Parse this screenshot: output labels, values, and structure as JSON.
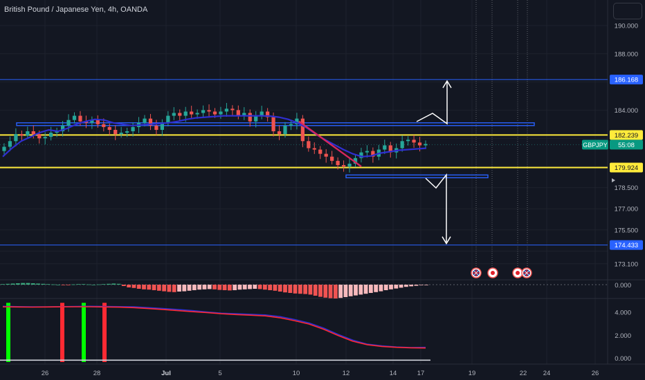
{
  "header": {
    "title": "British Pound / Japanese Yen, 4h, OANDA"
  },
  "colors": {
    "background": "#131722",
    "grid": "#1e222d",
    "up_candle": "#26a69a",
    "down_candle": "#ef5350",
    "sma_line": "#2f2fd0",
    "trend_line": "#d6275e",
    "yellow_level": "#ffeb3b",
    "blue_level": "#2962ff",
    "hist_neg_dark": "#f05352",
    "hist_neg_light": "#f7b9bc",
    "hist_pos": "#3aa77c",
    "green_bar": "#00ff00",
    "red_bar": "#ff2a33",
    "arrow": "#ffffff"
  },
  "price_axis": {
    "ticks": [
      "190.000",
      "188.000",
      "186.168",
      "184.000",
      "182.239",
      "179.924",
      "178.500",
      "177.000",
      "175.500",
      "174.433",
      "173.100"
    ],
    "symbol_badge": {
      "symbol": "GBPJPY",
      "countdown": "55:08"
    },
    "levels": [
      {
        "label": "186.168",
        "type": "blue"
      },
      {
        "label": "182.239",
        "type": "yellow"
      },
      {
        "label": "179.924",
        "type": "yellow"
      },
      {
        "label": "174.433",
        "type": "blue"
      }
    ]
  },
  "time_axis": {
    "labels": [
      "26",
      "28",
      "Jul",
      "5",
      "10",
      "12",
      "14",
      "17",
      "19",
      "22",
      "24",
      "26"
    ]
  },
  "osc1_axis": {
    "ticks": [
      "0.000"
    ]
  },
  "osc2_axis": {
    "ticks": [
      "4.000",
      "2.000",
      "0.000"
    ]
  },
  "events": [
    {
      "icon": "uk-flag-icon"
    },
    {
      "icon": "japan-flag-icon"
    },
    {
      "icon": "japan-flag-icon"
    },
    {
      "icon": "uk-flag-icon"
    }
  ],
  "chart_data": {
    "type": "candlestick",
    "title": "British Pound / Japanese Yen, 4h, OANDA",
    "symbol": "GBPJPY",
    "timeframe": "4h",
    "ylim": [
      172.6,
      191.3
    ],
    "x_tick_labels": [
      "26",
      "28",
      "Jul",
      "5",
      "10",
      "12",
      "14",
      "17",
      "19",
      "22",
      "24",
      "26"
    ],
    "key_levels": {
      "resistance_1": 186.168,
      "resistance_2": 182.239,
      "support_1": 179.924,
      "support_2": 174.433
    },
    "close_path": [
      181.4,
      181.8,
      182.3,
      182.2,
      182.5,
      182.3,
      182.0,
      182.1,
      182.4,
      182.5,
      182.9,
      183.3,
      183.6,
      183.2,
      183.1,
      183.3,
      183.0,
      182.8,
      182.6,
      182.3,
      182.4,
      182.5,
      182.8,
      183.1,
      183.4,
      182.9,
      182.6,
      183.1,
      183.6,
      183.8,
      183.6,
      183.9,
      183.7,
      183.8,
      184.0,
      183.9,
      183.7,
      183.9,
      184.1,
      184.0,
      183.6,
      183.8,
      183.2,
      183.6,
      183.9,
      183.5,
      182.5,
      182.3,
      182.9,
      183.0,
      183.4,
      181.8,
      181.3,
      181.2,
      180.9,
      180.7,
      180.4,
      180.1,
      180.0,
      180.2,
      180.6,
      181.0,
      181.1,
      180.7,
      181.2,
      181.5,
      181.0,
      181.3,
      181.8,
      181.9,
      181.7,
      181.5,
      181.6
    ],
    "sma_path": [
      180.7,
      181.3,
      181.8,
      182.1,
      182.4,
      182.6,
      182.5,
      182.7,
      183.0,
      183.2,
      183.35,
      183.3,
      183.1,
      183.0,
      182.9,
      182.95,
      183.0,
      183.05,
      183.1,
      183.2,
      183.35,
      183.45,
      183.5,
      183.55,
      183.6,
      183.6,
      183.6,
      183.6,
      183.6,
      183.58,
      183.5,
      183.35,
      183.1,
      182.75,
      182.3,
      181.9,
      181.55,
      181.2,
      180.9,
      180.7,
      180.75,
      180.95,
      181.05,
      181.15,
      181.2,
      181.25,
      181.3
    ],
    "trend_line": [
      183.2,
      180.0
    ],
    "projection_up_target": 186.168,
    "projection_down_target": 174.433,
    "oscillator_1": {
      "ylim": [
        -0.55,
        0.1
      ],
      "values": [
        0.02,
        0.03,
        0.04,
        0.05,
        0.06,
        0.06,
        0.05,
        0.04,
        0.03,
        0.02,
        0.01,
        0.0,
        -0.01,
        -0.02,
        0.01,
        0.02,
        0.02,
        0.01,
        0.0,
        0.01,
        0.02,
        0.03,
        0.04,
        0.03,
        -0.05,
        -0.1,
        -0.12,
        -0.15,
        -0.17,
        -0.18,
        -0.2,
        -0.22,
        -0.24,
        -0.26,
        -0.27,
        -0.25,
        -0.24,
        -0.22,
        -0.2,
        -0.18,
        -0.17,
        -0.16,
        -0.17,
        -0.19,
        -0.2,
        -0.21,
        -0.2,
        -0.18,
        -0.17,
        -0.16,
        -0.15,
        -0.16,
        -0.18,
        -0.2,
        -0.22,
        -0.25,
        -0.28,
        -0.3,
        -0.32,
        -0.33,
        -0.34,
        -0.36,
        -0.4,
        -0.44,
        -0.47,
        -0.49,
        -0.5,
        -0.48,
        -0.45,
        -0.42,
        -0.39,
        -0.36,
        -0.33,
        -0.3,
        -0.27,
        -0.24,
        -0.2,
        -0.17,
        -0.14,
        -0.11,
        -0.08,
        -0.06,
        -0.04,
        -0.02,
        -0.01
      ]
    },
    "oscillator_2": {
      "ylim": [
        -0.3,
        5.0
      ],
      "blue_line": [
        4.5,
        4.47,
        4.45,
        4.46,
        4.47,
        4.48,
        4.5,
        4.48,
        4.47,
        4.45,
        4.38,
        4.3,
        4.22,
        4.12,
        4.0,
        3.9,
        3.85,
        3.8,
        3.75,
        3.6,
        3.35,
        3.05,
        2.6,
        2.05,
        1.55,
        1.2,
        1.05,
        0.95,
        0.9,
        0.92
      ],
      "red_line": [
        4.45,
        4.44,
        4.43,
        4.44,
        4.45,
        4.46,
        4.46,
        4.44,
        4.42,
        4.38,
        4.3,
        4.22,
        4.12,
        4.03,
        3.95,
        3.85,
        3.78,
        3.72,
        3.66,
        3.5,
        3.25,
        2.95,
        2.5,
        1.95,
        1.45,
        1.15,
        1.0,
        0.92,
        0.88,
        0.86
      ],
      "signal_bars": [
        {
          "color": "green",
          "value": 4.8
        },
        {
          "color": "red",
          "value": 4.8
        },
        {
          "color": "green",
          "value": 4.8
        },
        {
          "color": "red",
          "value": 4.8
        }
      ]
    }
  }
}
